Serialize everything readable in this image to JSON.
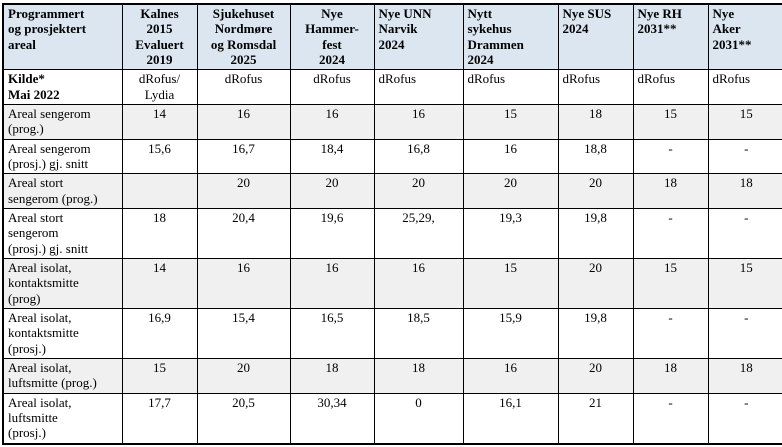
{
  "colors": {
    "header_bg": "#dce6f1",
    "shaded_row_bg": "#f0f0f0",
    "border": "#000000",
    "text": "#000000"
  },
  "table": {
    "corner_header": "Programmert\nog prosjektert\nareal",
    "columns": [
      {
        "label": "Kalnes\n2015\nEvaluert\n2019",
        "align": "center"
      },
      {
        "label": "Sjukehuset\nNordmøre\nog Romsdal\n2025",
        "align": "center"
      },
      {
        "label": "Nye\nHammer-\nfest\n2024",
        "align": "center"
      },
      {
        "label": "Nye UNN\nNarvik\n2024",
        "align": "left"
      },
      {
        "label": "Nytt\nsykehus\nDrammen\n2024",
        "align": "left"
      },
      {
        "label": "Nye SUS\n2024",
        "align": "left"
      },
      {
        "label": "Nye RH\n2031**",
        "align": "left"
      },
      {
        "label": "Nye\nAker\n2031**",
        "align": "left"
      }
    ],
    "source_row": {
      "label": "Kilde*\nMai 2022",
      "values": [
        "dRofus/\nLydia",
        "dRofus",
        "dRofus",
        "dRofus",
        "dRofus",
        "dRofus",
        "dRofus",
        "dRofus"
      ]
    },
    "rows": [
      {
        "label": "Areal sengerom\n(prog.)",
        "shaded": true,
        "values": [
          "14",
          "16",
          "16",
          "16",
          "15",
          "18",
          "15",
          "15"
        ]
      },
      {
        "label": "Areal sengerom\n(prosj.) gj. snitt",
        "shaded": false,
        "values": [
          "15,6",
          "16,7",
          "18,4",
          "16,8",
          "16",
          "18,8",
          "-",
          "-"
        ]
      },
      {
        "label": "Areal stort\nsengerom (prog.)",
        "shaded": true,
        "values": [
          "",
          "20",
          "20",
          "20",
          "20",
          "20",
          "18",
          "18"
        ]
      },
      {
        "label": "Areal stort\nsengerom\n(prosj.) gj. snitt",
        "shaded": false,
        "values": [
          "18",
          "20,4",
          "19,6",
          "25,29,",
          "19,3",
          "19,8",
          "-",
          "-"
        ]
      },
      {
        "label": "Areal isolat,\nkontaktsmitte\n(prog)",
        "shaded": true,
        "values": [
          "14",
          "16",
          "16",
          "16",
          "15",
          "20",
          "15",
          "15"
        ]
      },
      {
        "label": "Areal isolat,\nkontaktsmitte\n(prosj.)",
        "shaded": false,
        "values": [
          "16,9",
          "15,4",
          "16,5",
          "18,5",
          "15,9",
          "19,8",
          "-",
          "-"
        ]
      },
      {
        "label": "Areal isolat,\nluftsmitte (prog.)",
        "shaded": true,
        "values": [
          "15",
          "20",
          "18",
          "18",
          "16",
          "20",
          "18",
          "18"
        ]
      },
      {
        "label": "Areal isolat,\nluftsmitte\n(prosj.)",
        "shaded": false,
        "values": [
          "17,7",
          "20,5",
          "30,34",
          "0",
          "16,1",
          "21",
          "-",
          "-"
        ]
      }
    ]
  }
}
